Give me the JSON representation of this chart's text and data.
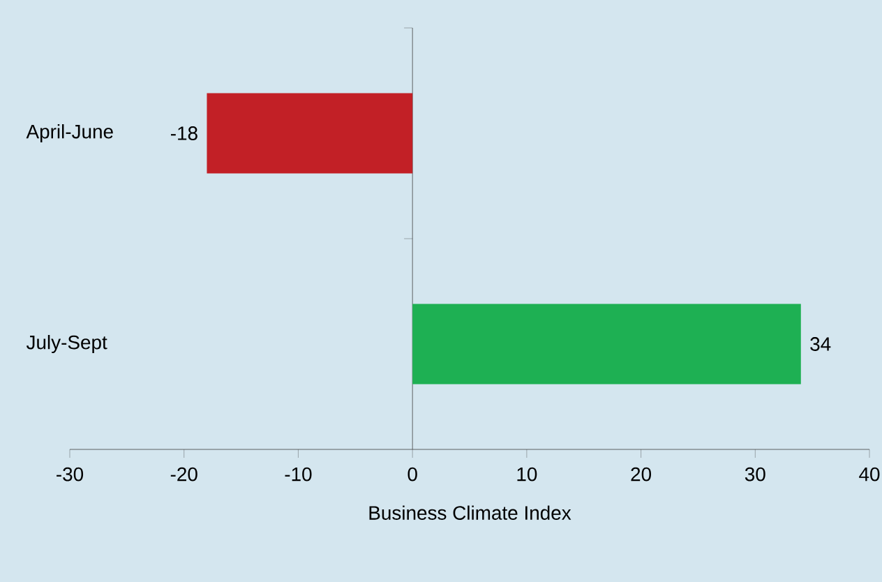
{
  "chart_data": {
    "type": "bar",
    "orientation": "horizontal",
    "xlabel": "Business Climate Index",
    "categories": [
      "April-June",
      "July-Sept"
    ],
    "values": [
      -18,
      34
    ],
    "colors": [
      "#c22026",
      "#1eb053"
    ],
    "xlim": [
      -30,
      40
    ],
    "xticks": [
      -30,
      -20,
      -10,
      0,
      10,
      20,
      30,
      40
    ],
    "data_labels": true
  }
}
